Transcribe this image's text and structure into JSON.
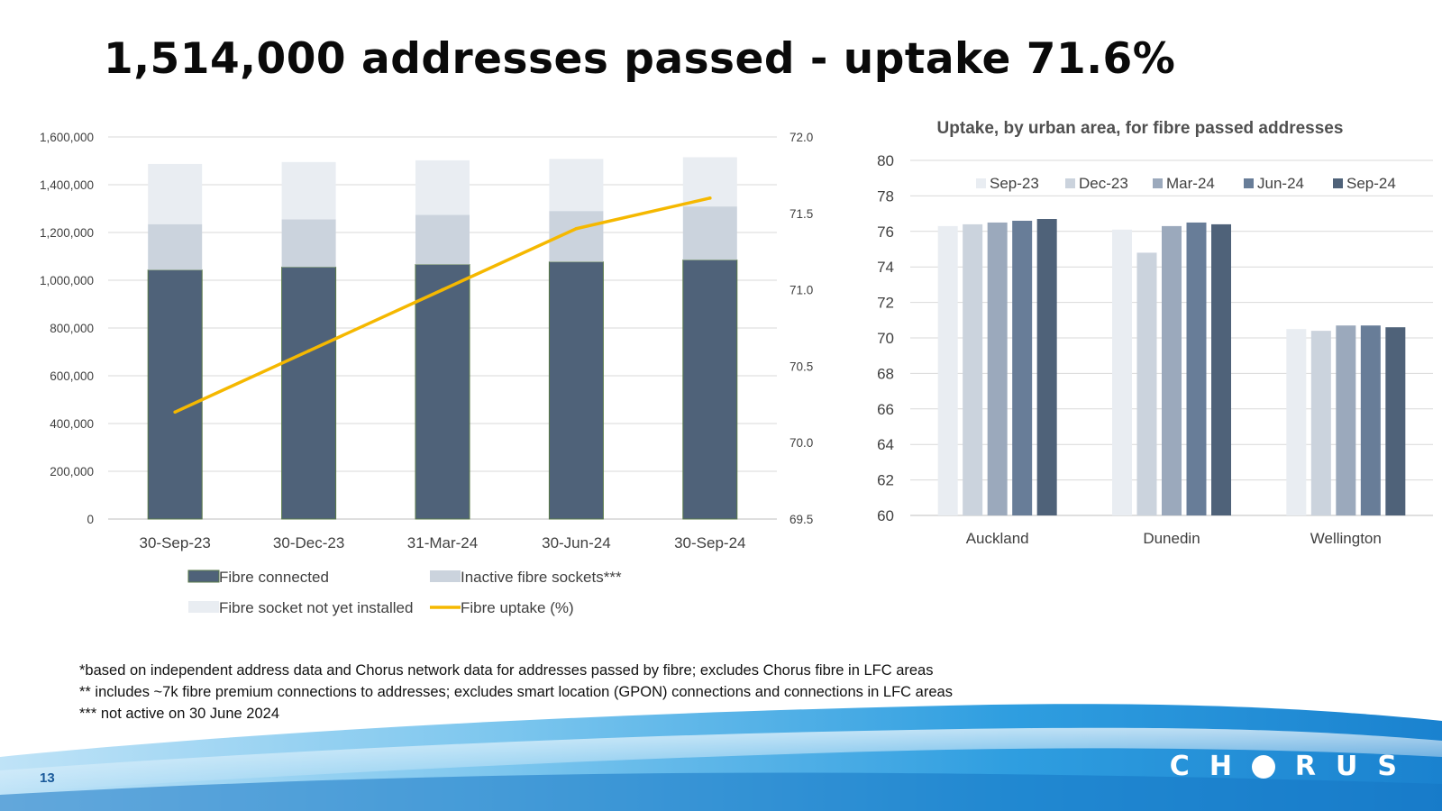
{
  "slide": {
    "title": "1,514,000 addresses passed - uptake 71.6%",
    "page_number": "13",
    "logo_parts": [
      "CH",
      "RUS"
    ],
    "footnotes": [
      "*based on independent address data and Chorus network data for addresses passed by fibre; excludes Chorus fibre in LFC areas",
      "** includes ~7k fibre premium connections to addresses; excludes smart location (GPON) connections and connections in LFC areas",
      "*** not active on 30 June 2024"
    ]
  },
  "chart_data": [
    {
      "type": "bar",
      "stacked": true,
      "title": "",
      "categories": [
        "30-Sep-23",
        "30-Dec-23",
        "31-Mar-24",
        "30-Jun-24",
        "30-Sep-24"
      ],
      "series": [
        {
          "name": "Fibre connected",
          "values": [
            1043000,
            1055000,
            1066000,
            1077000,
            1085000
          ],
          "color": "#4f6279"
        },
        {
          "name": "Inactive fibre sockets***",
          "values": [
            192000,
            200000,
            208000,
            213000,
            224000
          ],
          "color": "#cbd3dd"
        },
        {
          "name": "Fibre socket not yet installed",
          "values": [
            252000,
            240000,
            228000,
            218000,
            206000
          ],
          "color": "#e9edf2"
        }
      ],
      "line_series": {
        "name": "Fibre uptake (%)",
        "values": [
          70.2,
          70.6,
          71.0,
          71.4,
          71.6
        ],
        "color": "#f5b800"
      },
      "y_left": {
        "min": 0,
        "max": 1600000,
        "ticks": [
          "0",
          "200,000",
          "400,000",
          "600,000",
          "800,000",
          "1,000,000",
          "1,200,000",
          "1,400,000",
          "1,600,000"
        ]
      },
      "y_right": {
        "min": 69.5,
        "max": 72.0,
        "ticks": [
          "69.5",
          "70.0",
          "70.5",
          "71.0",
          "71.5",
          "72.0"
        ]
      },
      "grid": true,
      "legend_position": "bottom"
    },
    {
      "type": "bar",
      "title": "Uptake, by urban area, for fibre passed addresses",
      "categories": [
        "Auckland",
        "Dunedin",
        "Wellington"
      ],
      "series": [
        {
          "name": "Sep-23",
          "values": [
            76.3,
            76.1,
            70.5
          ],
          "color": "#e9edf2"
        },
        {
          "name": "Dec-23",
          "values": [
            76.4,
            74.8,
            70.4
          ],
          "color": "#cbd3dd"
        },
        {
          "name": "Mar-24",
          "values": [
            76.5,
            76.3,
            70.7
          ],
          "color": "#9ba9bc"
        },
        {
          "name": "Jun-24",
          "values": [
            76.6,
            76.5,
            70.7
          ],
          "color": "#687d98"
        },
        {
          "name": "Sep-24",
          "values": [
            76.7,
            76.4,
            70.6
          ],
          "color": "#4f6279"
        }
      ],
      "y": {
        "min": 60,
        "max": 80,
        "ticks": [
          "60",
          "62",
          "64",
          "66",
          "68",
          "70",
          "72",
          "74",
          "76",
          "78",
          "80"
        ]
      },
      "grid": true,
      "legend_position": "top"
    }
  ]
}
